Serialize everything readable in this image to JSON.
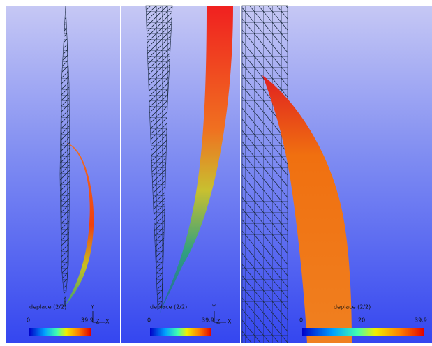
{
  "panels": [
    {
      "legend": {
        "title": "deplace (2/2)",
        "ticks": [
          0,
          39.9
        ]
      },
      "axes": {
        "y": "Y",
        "z": "Z",
        "x": "X"
      }
    },
    {
      "legend": {
        "title": "deplace (2/2)",
        "ticks": [
          0,
          39.9
        ]
      },
      "axes": {
        "y": "Y",
        "z": "Z",
        "x": "X"
      }
    },
    {
      "legend": {
        "title": "deplace (2/2)",
        "ticks": [
          0,
          20,
          39.9
        ]
      }
    }
  ]
}
